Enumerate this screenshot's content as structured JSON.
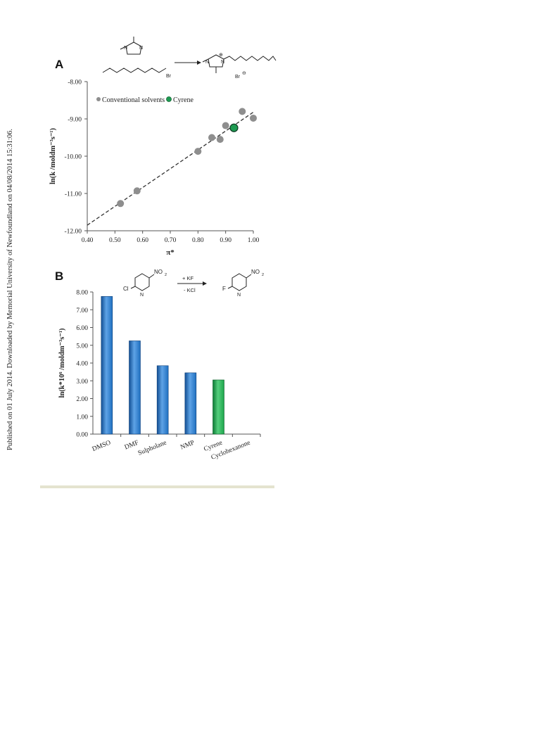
{
  "side_note": "Published on 01 July 2014. Downloaded by Memorial University of Newfoundland on 04/08/2014 15:31:06.",
  "colors": {
    "grey_point": "#8e8e8e",
    "green_point": "#1e9b52",
    "blue_bar": "#1f6fc0",
    "green_bar": "#1ea64c",
    "rule": "#e4e3cf"
  },
  "panel_a": {
    "letter": "A",
    "scheme": {
      "bromide_label": "Br",
      "cation_charge": "⊕",
      "anion_label": "Br",
      "anion_charge": "⊖",
      "n_label_1": "N",
      "n_label_2": "N",
      "n_label_3": "N",
      "n_label_4": "N"
    }
  },
  "panel_b": {
    "letter": "B",
    "scheme": {
      "reagent_top": "+ KF",
      "reagent_bottom": "- KCl",
      "reactant_substituent": "Cl",
      "product_substituent": "F",
      "nitro_label": "NO",
      "nitro_sub": "2",
      "ring_n": "N"
    }
  },
  "chart_data": [
    {
      "type": "scatter",
      "xlabel": "π*",
      "ylabel": "ln(k /moldm⁻³s⁻¹)",
      "xlim": [
        0.4,
        1.0
      ],
      "ylim": [
        -12.0,
        -8.0
      ],
      "xticks": [
        "0.40",
        "0.50",
        "0.60",
        "0.70",
        "0.80",
        "0.90",
        "1.00"
      ],
      "yticks": [
        "-8.00",
        "-9.00",
        "-10.00",
        "-11.00",
        "-12.00"
      ],
      "legend_position": "top-left",
      "series": [
        {
          "name": "Conventional solvents",
          "x": [
            0.52,
            0.58,
            0.8,
            0.85,
            0.88,
            0.9,
            0.96,
            1.0
          ],
          "y": [
            -11.27,
            -10.93,
            -9.87,
            -9.5,
            -9.55,
            -9.18,
            -8.8,
            -8.98
          ]
        },
        {
          "name": "Cyrene",
          "x": [
            0.93
          ],
          "y": [
            -9.24
          ]
        }
      ],
      "fit_line": {
        "x": [
          0.4,
          1.0
        ],
        "y": [
          -11.85,
          -8.82
        ]
      }
    },
    {
      "type": "bar",
      "ylabel": "ln(k*10⁶ /moldm⁻³s⁻¹)",
      "ylim": [
        0.0,
        8.0
      ],
      "yticks": [
        "0.00",
        "1.00",
        "2.00",
        "3.00",
        "4.00",
        "5.00",
        "6.00",
        "7.00",
        "8.00"
      ],
      "categories": [
        "DMSO",
        "DMF",
        "Sulpholane",
        "NMP",
        "Cyrene",
        "Cyclohexanone"
      ],
      "values": [
        7.75,
        5.25,
        3.85,
        3.45,
        3.05,
        0.0
      ]
    }
  ]
}
